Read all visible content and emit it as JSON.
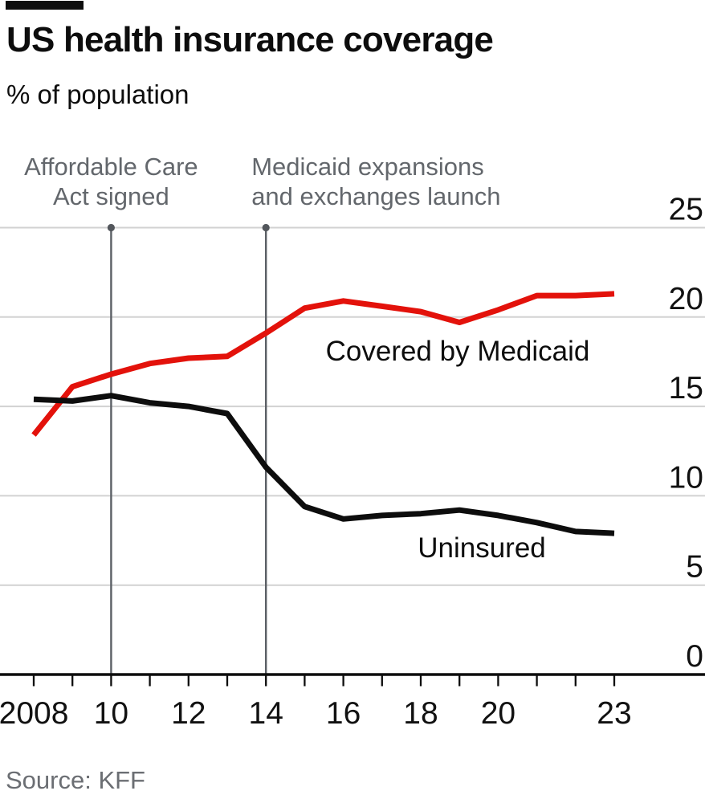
{
  "header": {
    "title": "US health insurance coverage",
    "subtitle": "% of population"
  },
  "source": "Source: KFF",
  "colors": {
    "medicaid_red": "#e3120b",
    "uninsured_black": "#0d0d0d",
    "gridline": "#d2d2d2",
    "event_line": "#5c6066",
    "event_dot": "#53575c",
    "annotation_text": "#63676c",
    "axis": "#0d0d0d",
    "tab": "#0d0d0d"
  },
  "chart_data": {
    "type": "line",
    "title": "US health insurance coverage",
    "subtitle": "% of population",
    "x": [
      2008,
      2009,
      2010,
      2011,
      2012,
      2013,
      2014,
      2015,
      2016,
      2017,
      2018,
      2019,
      2020,
      2021,
      2022,
      2023
    ],
    "series": [
      {
        "name": "Covered by Medicaid",
        "color": "#e3120b",
        "values": [
          13.4,
          16.1,
          16.8,
          17.4,
          17.7,
          17.8,
          19.1,
          20.5,
          20.9,
          20.6,
          20.3,
          19.7,
          20.4,
          21.2,
          21.2,
          21.3
        ]
      },
      {
        "name": "Uninsured",
        "color": "#0d0d0d",
        "values": [
          15.4,
          15.3,
          15.6,
          15.2,
          15.0,
          14.6,
          11.6,
          9.4,
          8.7,
          8.9,
          9.0,
          9.2,
          8.9,
          8.5,
          8.0,
          7.9
        ]
      }
    ],
    "ylim": [
      0,
      25
    ],
    "y_ticks": [
      25,
      20,
      15,
      10,
      5,
      0
    ],
    "y_axis_side": "right",
    "grid": true,
    "legend": "inline-labels",
    "x_tick_labels": [
      {
        "year": 2008,
        "text": "2008"
      },
      {
        "year": 2010,
        "text": "10"
      },
      {
        "year": 2012,
        "text": "12"
      },
      {
        "year": 2014,
        "text": "14"
      },
      {
        "year": 2016,
        "text": "16"
      },
      {
        "year": 2018,
        "text": "18"
      },
      {
        "year": 2020,
        "text": "20"
      },
      {
        "year": 2023,
        "text": "23"
      }
    ],
    "annotations": [
      {
        "year": 2010,
        "align": "center",
        "lines": [
          "Affordable Care",
          "Act signed"
        ]
      },
      {
        "year": 2014,
        "align": "left",
        "lines": [
          "Medicaid expansions",
          "and exchanges launch"
        ]
      }
    ]
  }
}
